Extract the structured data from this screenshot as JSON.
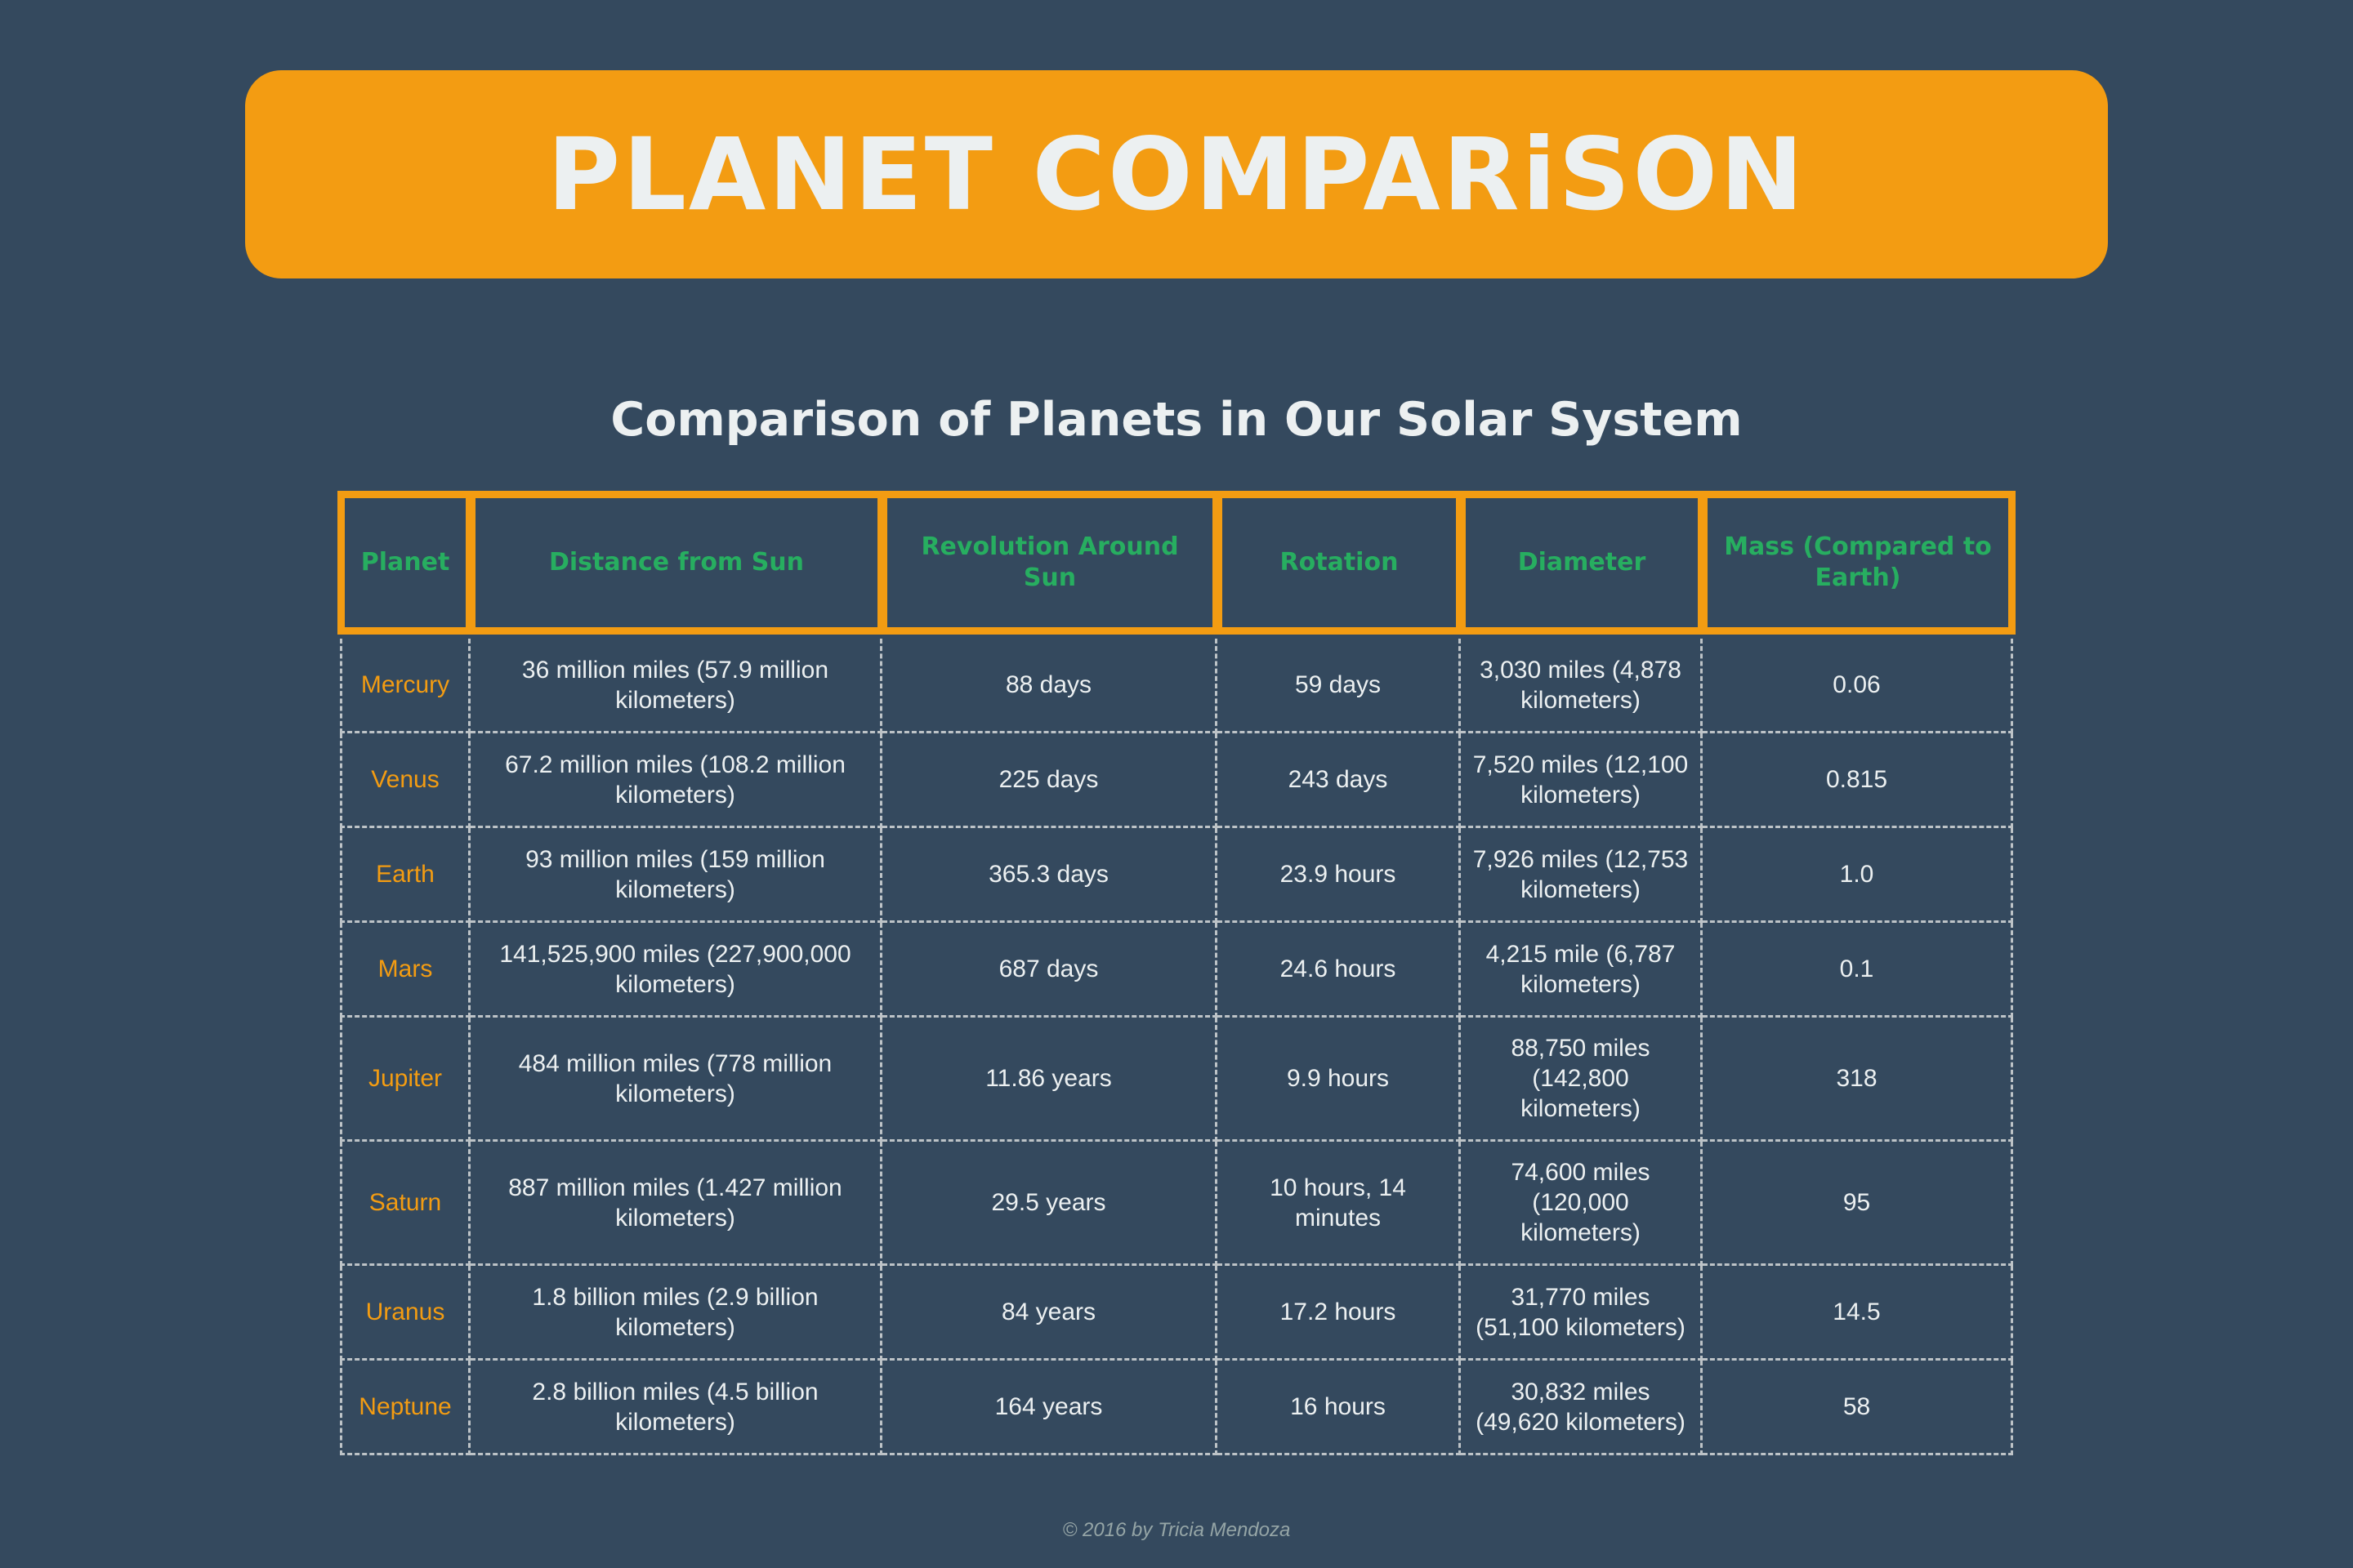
{
  "banner": {
    "title": "PLANET COMPARiSON"
  },
  "subtitle": "Comparison of Planets in Our Solar System",
  "table": {
    "headers": [
      "Planet",
      "Distance from Sun",
      "Revolution Around Sun",
      "Rotation",
      "Diameter",
      "Mass (Compared to Earth)"
    ],
    "rows": [
      [
        "Mercury",
        "36 million miles (57.9 million kilometers)",
        "88 days",
        "59 days",
        "3,030 miles (4,878 kilometers)",
        "0.06"
      ],
      [
        "Venus",
        "67.2 million miles (108.2 million kilometers)",
        "225 days",
        "243 days",
        "7,520 miles (12,100 kilometers)",
        "0.815"
      ],
      [
        "Earth",
        "93 million miles (159 million kilometers)",
        "365.3 days",
        "23.9 hours",
        "7,926 miles (12,753 kilometers)",
        "1.0"
      ],
      [
        "Mars",
        "141,525,900 miles (227,900,000 kilometers)",
        "687 days",
        "24.6 hours",
        "4,215 mile (6,787 kilometers)",
        "0.1"
      ],
      [
        "Jupiter",
        "484 million miles (778 million kilometers)",
        "11.86 years",
        "9.9 hours",
        "88,750 miles (142,800 kilometers)",
        "318"
      ],
      [
        "Saturn",
        "887 million miles (1.427 million kilometers)",
        "29.5 years",
        "10 hours, 14 minutes",
        "74,600 miles (120,000 kilometers)",
        "95"
      ],
      [
        "Uranus",
        "1.8 billion miles (2.9 billion kilometers)",
        "84 years",
        "17.2 hours",
        "31,770 miles (51,100 kilometers)",
        "14.5"
      ],
      [
        "Neptune",
        "2.8 billion miles (4.5 billion kilometers)",
        "164 years",
        "16 hours",
        "30,832 miles (49,620 kilometers)",
        "58"
      ]
    ]
  },
  "footer": "© 2016 by Tricia Mendoza",
  "colors": {
    "background": "#34495e",
    "banner": "#f39c12",
    "header_text": "#27ae60",
    "planet_text": "#f39c12",
    "body_text": "#ecf0f1"
  }
}
